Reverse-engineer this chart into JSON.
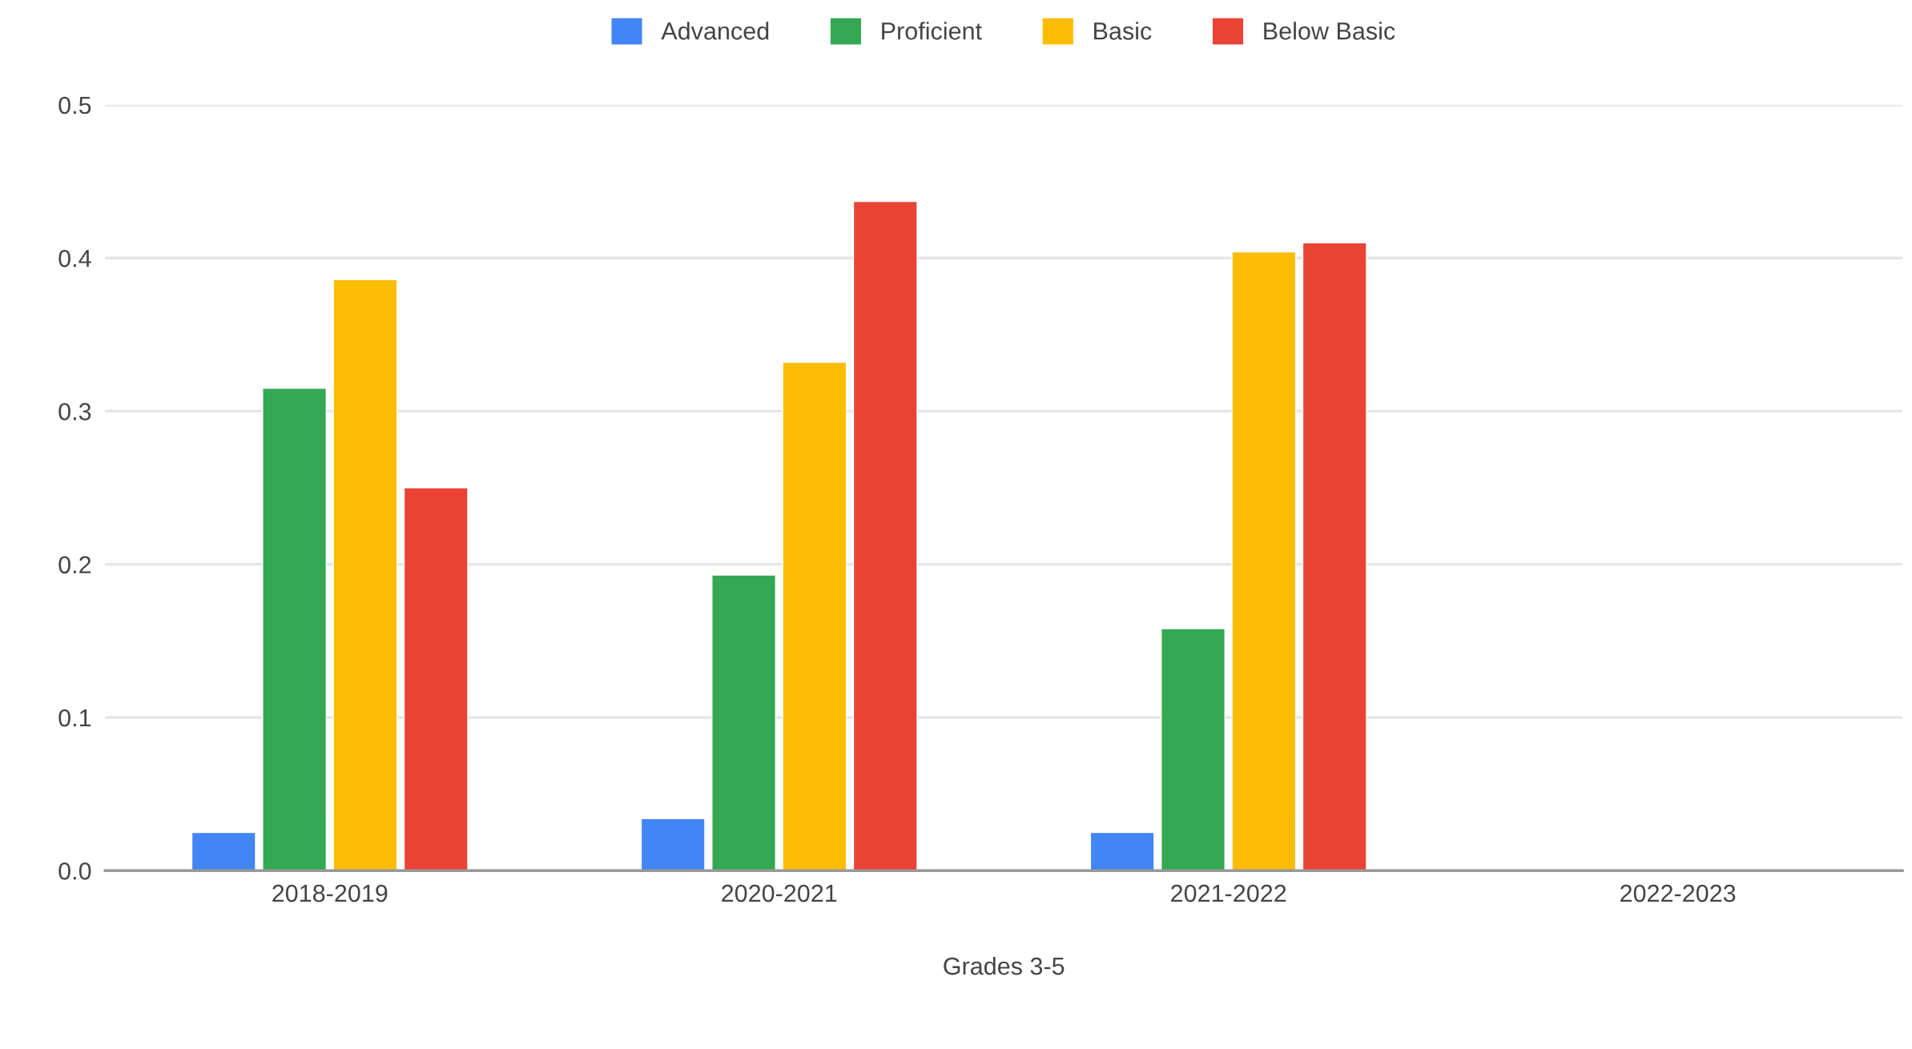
{
  "chart_data": {
    "type": "bar",
    "xlabel": "Grades 3-5",
    "categories": [
      "2018-2019",
      "2020-2021",
      "2021-2022",
      "2022-2023"
    ],
    "series": [
      {
        "name": "Advanced",
        "color": "#4285f4",
        "values": [
          0.025,
          0.034,
          0.025,
          null
        ]
      },
      {
        "name": "Proficient",
        "color": "#34a853",
        "values": [
          0.315,
          0.193,
          0.158,
          null
        ]
      },
      {
        "name": "Basic",
        "color": "#fbbc04",
        "values": [
          0.386,
          0.332,
          0.404,
          null
        ]
      },
      {
        "name": "Below Basic",
        "color": "#ea4335",
        "values": [
          0.25,
          0.437,
          0.41,
          null
        ]
      }
    ],
    "ylim": [
      0,
      0.5
    ],
    "yticks": [
      {
        "value": 0,
        "label": "0.0"
      },
      0.1,
      0.2,
      0.3,
      0.4,
      0.5
    ],
    "grid": "y",
    "legend": "top"
  }
}
